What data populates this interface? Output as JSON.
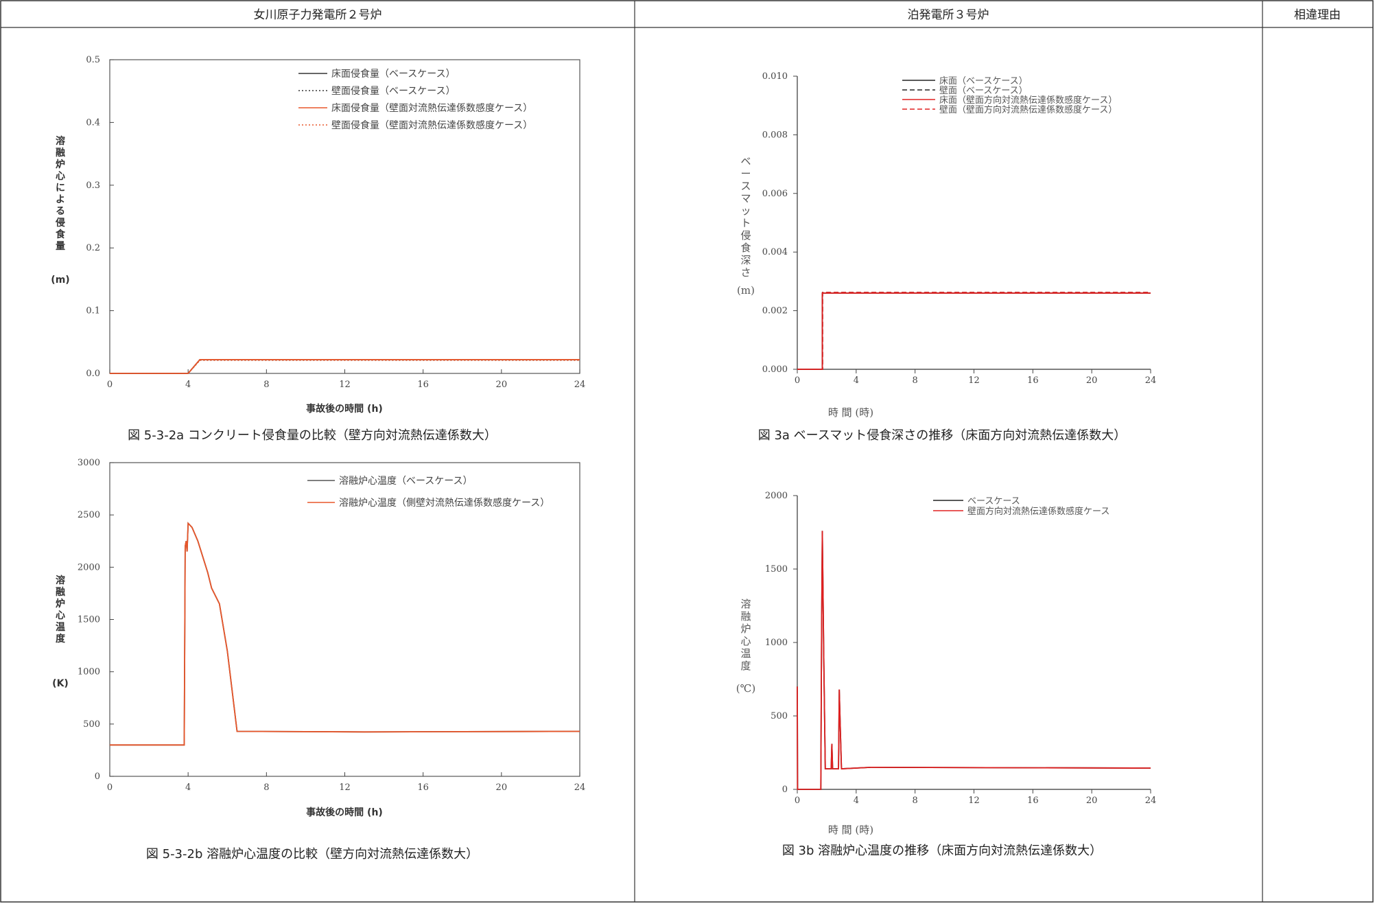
{
  "columns": {
    "onagawa": "女川原子力発電所２号炉",
    "tomari": "泊発電所３号炉",
    "reason": "相違理由"
  },
  "chart_data": [
    {
      "id": "c1",
      "type": "line",
      "caption": "図 5-3-2a コンクリート侵食量の比較（壁方向対流熱伝達係数大）",
      "xlabel": "事故後の時間 (h)",
      "ylabel": "溶融炉心による侵食量",
      "yunit": "(m)",
      "xlim": [
        0,
        24
      ],
      "ylim": [
        0,
        0.5
      ],
      "xticks": [
        "0",
        "4",
        "8",
        "12",
        "16",
        "20",
        "24"
      ],
      "yticks": [
        "0.0",
        "0.1",
        "0.2",
        "0.3",
        "0.4",
        "0.5"
      ],
      "legend_position": "top-right",
      "series": [
        {
          "name": "床面侵食量（ベースケース）",
          "color": "#333333",
          "dash": "solid",
          "points": [
            [
              0,
              0
            ],
            [
              4,
              0
            ],
            [
              4.6,
              0.022
            ],
            [
              24,
              0.022
            ]
          ]
        },
        {
          "name": "壁面侵食量（ベースケース）",
          "color": "#333333",
          "dash": "dotted",
          "points": [
            [
              0,
              0
            ],
            [
              4,
              0
            ],
            [
              4.6,
              0.021
            ],
            [
              24,
              0.021
            ]
          ]
        },
        {
          "name": "床面侵食量（壁面対流熱伝達係数感度ケース）",
          "color": "#e8562a",
          "dash": "solid",
          "points": [
            [
              0,
              0
            ],
            [
              4,
              0
            ],
            [
              4.6,
              0.022
            ],
            [
              24,
              0.022
            ]
          ]
        },
        {
          "name": "壁面侵食量（壁面対流熱伝達係数感度ケース）",
          "color": "#e8562a",
          "dash": "dotted",
          "points": [
            [
              0,
              0
            ],
            [
              4,
              0
            ],
            [
              4.6,
              0.021
            ],
            [
              24,
              0.021
            ]
          ]
        }
      ]
    },
    {
      "id": "c2",
      "type": "line",
      "caption": "図 3a ベースマット侵食深さの推移（床面方向対流熱伝達係数大）",
      "xlabel": "時 間 (時)",
      "ylabel": "ベースマット侵食深さ",
      "yunit": "(m)",
      "xlim": [
        0,
        24
      ],
      "ylim": [
        0,
        0.01
      ],
      "xticks": [
        "0",
        "4",
        "8",
        "12",
        "16",
        "20",
        "24"
      ],
      "yticks": [
        "0.000",
        "0.002",
        "0.004",
        "0.006",
        "0.008",
        "0.010"
      ],
      "legend_position": "top-right",
      "series": [
        {
          "name": "床面（ベースケース）",
          "color": "#222222",
          "dash": "solid",
          "points": [
            [
              0,
              0
            ],
            [
              1.7,
              0
            ],
            [
              1.7,
              0.0026
            ],
            [
              24,
              0.0026
            ]
          ]
        },
        {
          "name": "壁面（ベースケース）",
          "color": "#222222",
          "dash": "dashed",
          "points": [
            [
              0,
              0
            ],
            [
              1.72,
              0
            ],
            [
              1.72,
              0.00262
            ],
            [
              24,
              0.00262
            ]
          ]
        },
        {
          "name": "床面（壁面方向対流熱伝達係数感度ケース）",
          "color": "#e02020",
          "dash": "solid",
          "points": [
            [
              0,
              0
            ],
            [
              1.7,
              0
            ],
            [
              1.7,
              0.0026
            ],
            [
              24,
              0.0026
            ]
          ]
        },
        {
          "name": "壁面（壁面方向対流熱伝達係数感度ケース）",
          "color": "#e02020",
          "dash": "dashed",
          "points": [
            [
              0,
              0
            ],
            [
              1.72,
              0
            ],
            [
              1.72,
              0.00262
            ],
            [
              24,
              0.00262
            ]
          ]
        }
      ]
    },
    {
      "id": "c3",
      "type": "line",
      "caption": "図 5-3-2b 溶融炉心温度の比較（壁方向対流熱伝達係数大）",
      "xlabel": "事故後の時間 (h)",
      "ylabel": "溶融炉心温度",
      "yunit": "(K)",
      "xlim": [
        0,
        24
      ],
      "ylim": [
        0,
        3000
      ],
      "xticks": [
        "0",
        "4",
        "8",
        "12",
        "16",
        "20",
        "24"
      ],
      "yticks": [
        "0",
        "500",
        "1000",
        "1500",
        "2000",
        "2500",
        "3000"
      ],
      "legend_position": "top-right",
      "series": [
        {
          "name": "溶融炉心温度（ベースケース）",
          "color": "#555555",
          "dash": "solid",
          "points": [
            [
              0,
              300
            ],
            [
              3.8,
              300
            ],
            [
              3.85,
              2200
            ],
            [
              3.9,
              2250
            ],
            [
              3.95,
              2150
            ],
            [
              4.0,
              2420
            ],
            [
              4.2,
              2380
            ],
            [
              4.5,
              2250
            ],
            [
              5.0,
              1950
            ],
            [
              5.2,
              1800
            ],
            [
              5.6,
              1650
            ],
            [
              6.0,
              1200
            ],
            [
              6.5,
              430
            ],
            [
              13,
              425
            ],
            [
              24,
              430
            ]
          ]
        },
        {
          "name": "溶融炉心温度（側壁対流熱伝達係数感度ケース）",
          "color": "#e8562a",
          "dash": "solid",
          "points": [
            [
              0,
              300
            ],
            [
              3.8,
              300
            ],
            [
              3.85,
              2200
            ],
            [
              3.9,
              2250
            ],
            [
              3.95,
              2150
            ],
            [
              4.0,
              2420
            ],
            [
              4.2,
              2380
            ],
            [
              4.5,
              2250
            ],
            [
              5.0,
              1950
            ],
            [
              5.2,
              1800
            ],
            [
              5.6,
              1650
            ],
            [
              6.0,
              1200
            ],
            [
              6.5,
              430
            ],
            [
              13,
              425
            ],
            [
              24,
              430
            ]
          ]
        }
      ]
    },
    {
      "id": "c4",
      "type": "line",
      "caption": "図 3b 溶融炉心温度の推移（床面方向対流熱伝達係数大）",
      "xlabel": "時 間 (時)",
      "ylabel": "溶融炉心温度",
      "yunit": "(℃)",
      "xlim": [
        0,
        24
      ],
      "ylim": [
        0,
        2000
      ],
      "xticks": [
        "0",
        "4",
        "8",
        "12",
        "16",
        "20",
        "24"
      ],
      "yticks": [
        "0",
        "500",
        "1000",
        "1500",
        "2000"
      ],
      "legend_position": "top-right",
      "series": [
        {
          "name": "ベースケース",
          "color": "#222222",
          "dash": "solid",
          "points": [
            [
              0,
              700
            ],
            [
              0.02,
              0
            ],
            [
              1.6,
              0
            ],
            [
              1.65,
              1050
            ],
            [
              1.7,
              1760
            ],
            [
              1.8,
              900
            ],
            [
              1.9,
              140
            ],
            [
              2.3,
              140
            ],
            [
              2.35,
              310
            ],
            [
              2.4,
              140
            ],
            [
              2.8,
              140
            ],
            [
              2.85,
              680
            ],
            [
              2.9,
              500
            ],
            [
              3.0,
              140
            ],
            [
              5,
              150
            ],
            [
              24,
              145
            ]
          ]
        },
        {
          "name": "壁面方向対流熱伝達係数感度ケース",
          "color": "#e02020",
          "dash": "solid",
          "points": [
            [
              0,
              700
            ],
            [
              0.02,
              0
            ],
            [
              1.6,
              0
            ],
            [
              1.65,
              1050
            ],
            [
              1.7,
              1760
            ],
            [
              1.8,
              900
            ],
            [
              1.9,
              140
            ],
            [
              2.3,
              140
            ],
            [
              2.35,
              310
            ],
            [
              2.4,
              140
            ],
            [
              2.8,
              140
            ],
            [
              2.85,
              680
            ],
            [
              2.9,
              500
            ],
            [
              3.0,
              140
            ],
            [
              5,
              150
            ],
            [
              24,
              145
            ]
          ]
        }
      ]
    }
  ]
}
